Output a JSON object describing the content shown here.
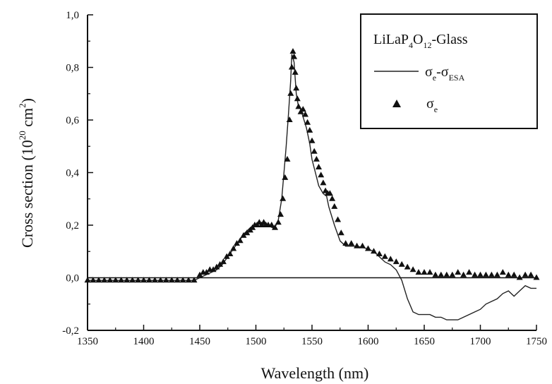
{
  "chart_data": {
    "type": "line",
    "xlabel": "Wavelength (nm)",
    "ylabel": {
      "prefix": "Cross section (10",
      "sup1": "20",
      "mid": " cm",
      "sup2": "2",
      "suffix": ")"
    },
    "xlim": [
      1350,
      1750
    ],
    "ylim": [
      -0.2,
      1.0
    ],
    "xticks": [
      "1350",
      "1400",
      "1450",
      "1500",
      "1550",
      "1600",
      "1650",
      "1700",
      "1750"
    ],
    "yticks": [
      "-0,2",
      "0,0",
      "0,2",
      "0,4",
      "0,6",
      "0,8",
      "1,0"
    ],
    "xtick_values": [
      1350,
      1400,
      1450,
      1500,
      1550,
      1600,
      1650,
      1700,
      1750
    ],
    "ytick_values": [
      -0.2,
      0.0,
      0.2,
      0.4,
      0.6,
      0.8,
      1.0
    ],
    "legend": {
      "placement": "top-right",
      "title": {
        "a": "LiLaP",
        "s1": "4",
        "b": "O",
        "s2": "12",
        "c": "-Glass"
      },
      "line_label": {
        "a": "σ",
        "s1": "e",
        "b": "-σ",
        "s2": "ESA"
      },
      "marker_label": {
        "a": "σ",
        "s1": "e"
      }
    },
    "series": [
      {
        "kind": "line",
        "color": "#222222",
        "x": [
          1350,
          1380,
          1420,
          1445,
          1455,
          1460,
          1465,
          1470,
          1475,
          1480,
          1485,
          1490,
          1495,
          1498,
          1500,
          1503,
          1506,
          1510,
          1515,
          1518,
          1520,
          1523,
          1525,
          1527,
          1529,
          1531,
          1532,
          1534,
          1536,
          1538,
          1540,
          1545,
          1548,
          1550,
          1553,
          1556,
          1560,
          1563,
          1565,
          1570,
          1575,
          1580,
          1590,
          1600,
          1605,
          1610,
          1615,
          1620,
          1625,
          1630,
          1635,
          1640,
          1645,
          1650,
          1655,
          1660,
          1665,
          1670,
          1675,
          1680,
          1685,
          1690,
          1695,
          1700,
          1705,
          1710,
          1715,
          1720,
          1725,
          1730,
          1735,
          1740,
          1745,
          1750
        ],
        "y": [
          -0.01,
          -0.01,
          -0.01,
          -0.01,
          0.01,
          0.02,
          0.03,
          0.05,
          0.08,
          0.11,
          0.14,
          0.17,
          0.19,
          0.2,
          0.2,
          0.21,
          0.2,
          0.2,
          0.19,
          0.2,
          0.22,
          0.3,
          0.4,
          0.5,
          0.62,
          0.75,
          0.85,
          0.82,
          0.7,
          0.65,
          0.64,
          0.57,
          0.51,
          0.45,
          0.4,
          0.35,
          0.32,
          0.31,
          0.27,
          0.2,
          0.14,
          0.12,
          0.12,
          0.11,
          0.1,
          0.08,
          0.06,
          0.05,
          0.03,
          -0.01,
          -0.08,
          -0.13,
          -0.14,
          -0.14,
          -0.14,
          -0.15,
          -0.15,
          -0.16,
          -0.16,
          -0.16,
          -0.15,
          -0.14,
          -0.13,
          -0.12,
          -0.1,
          -0.09,
          -0.08,
          -0.06,
          -0.05,
          -0.07,
          -0.05,
          -0.03,
          -0.04,
          -0.04
        ]
      },
      {
        "kind": "scatter",
        "marker": "triangle",
        "color": "#111111",
        "x": [
          1350,
          1355,
          1360,
          1365,
          1370,
          1375,
          1380,
          1385,
          1390,
          1395,
          1400,
          1405,
          1410,
          1415,
          1420,
          1425,
          1430,
          1435,
          1440,
          1445,
          1450,
          1453,
          1456,
          1459,
          1462,
          1465,
          1468,
          1471,
          1474,
          1477,
          1480,
          1483,
          1486,
          1489,
          1492,
          1495,
          1497,
          1499,
          1501,
          1503,
          1505,
          1507,
          1509,
          1511,
          1514,
          1517,
          1520,
          1522,
          1524,
          1526,
          1528,
          1530,
          1531,
          1532,
          1533,
          1534,
          1535,
          1536,
          1537,
          1538,
          1540,
          1542,
          1544,
          1546,
          1548,
          1550,
          1552,
          1554,
          1556,
          1558,
          1560,
          1562,
          1564,
          1566,
          1568,
          1570,
          1573,
          1576,
          1580,
          1585,
          1590,
          1595,
          1600,
          1605,
          1610,
          1615,
          1620,
          1625,
          1630,
          1635,
          1640,
          1645,
          1650,
          1655,
          1660,
          1665,
          1670,
          1675,
          1680,
          1685,
          1690,
          1695,
          1700,
          1705,
          1710,
          1715,
          1720,
          1725,
          1730,
          1735,
          1740,
          1745,
          1750
        ],
        "y": [
          -0.01,
          -0.01,
          -0.01,
          -0.01,
          -0.01,
          -0.01,
          -0.01,
          -0.01,
          -0.01,
          -0.01,
          -0.01,
          -0.01,
          -0.01,
          -0.01,
          -0.01,
          -0.01,
          -0.01,
          -0.01,
          -0.01,
          -0.01,
          0.01,
          0.02,
          0.02,
          0.03,
          0.03,
          0.04,
          0.05,
          0.06,
          0.08,
          0.09,
          0.11,
          0.13,
          0.14,
          0.16,
          0.17,
          0.18,
          0.19,
          0.2,
          0.2,
          0.21,
          0.2,
          0.21,
          0.2,
          0.2,
          0.2,
          0.19,
          0.21,
          0.24,
          0.3,
          0.38,
          0.45,
          0.6,
          0.7,
          0.8,
          0.86,
          0.84,
          0.78,
          0.72,
          0.68,
          0.65,
          0.63,
          0.64,
          0.62,
          0.59,
          0.56,
          0.52,
          0.48,
          0.45,
          0.42,
          0.39,
          0.36,
          0.33,
          0.32,
          0.32,
          0.3,
          0.27,
          0.22,
          0.17,
          0.13,
          0.13,
          0.12,
          0.12,
          0.11,
          0.1,
          0.09,
          0.08,
          0.07,
          0.06,
          0.05,
          0.04,
          0.03,
          0.02,
          0.02,
          0.02,
          0.01,
          0.01,
          0.01,
          0.01,
          0.02,
          0.01,
          0.02,
          0.01,
          0.01,
          0.01,
          0.01,
          0.01,
          0.02,
          0.01,
          0.01,
          0.0,
          0.01,
          0.01,
          0.0
        ]
      }
    ],
    "grid": false
  }
}
